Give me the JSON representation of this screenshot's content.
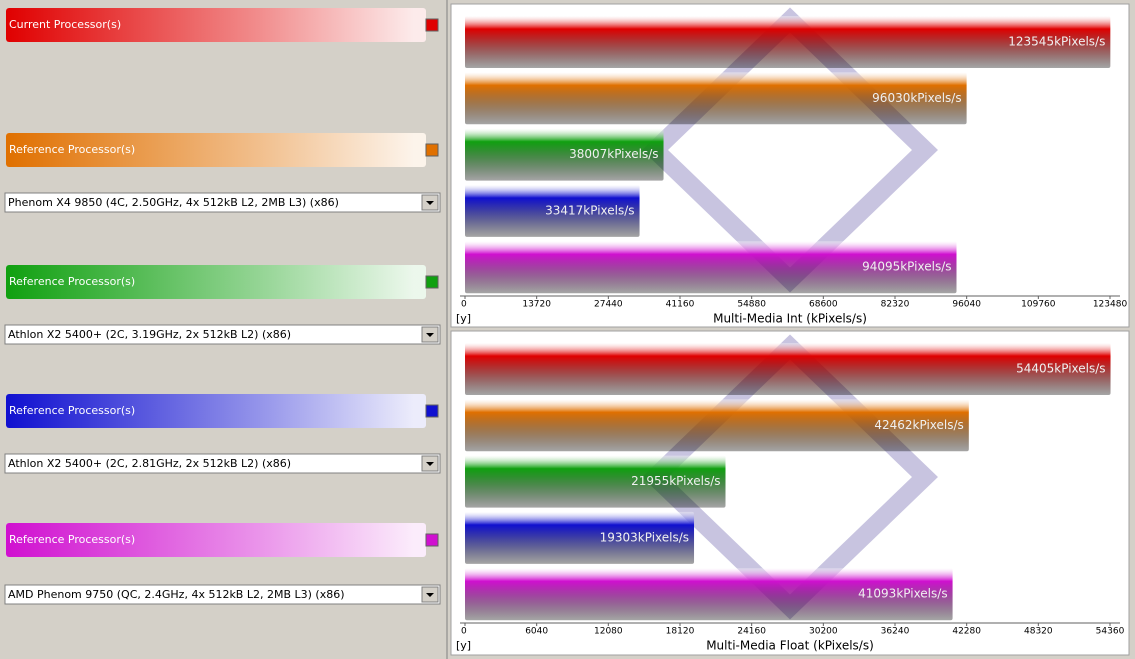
{
  "panel": {
    "processors": [
      {
        "label": "Current Processor(s)",
        "color": "#e00000"
      },
      {
        "label": "Reference Processor(s)",
        "color": "#e07000",
        "selection": "Phenom X4 9850 (4C, 2.50GHz, 4x 512kB L2, 2MB L3) (x86)"
      },
      {
        "label": "Reference Processor(s)",
        "color": "#10a010",
        "selection": "Athlon X2 5400+ (2C, 3.19GHz, 2x 512kB L2) (x86)"
      },
      {
        "label": "Reference Processor(s)",
        "color": "#1010d0",
        "selection": "Athlon X2 5400+ (2C, 2.81GHz, 2x 512kB L2) (x86)"
      },
      {
        "label": "Reference Processor(s)",
        "color": "#d010d0",
        "selection": "AMD Phenom 9750 (QC, 2.4GHz, 4x 512kB L2, 2MB L3) (x86)"
      }
    ]
  },
  "chart_data": [
    {
      "type": "bar",
      "orientation": "horizontal",
      "xlabel": "Multi-Media Int (kPixels/s)",
      "unit_label": "[y]",
      "values": [
        123545,
        96030,
        38007,
        33417,
        94095
      ],
      "value_labels": [
        "123545kPixels/s",
        "96030kPixels/s",
        "38007kPixels/s",
        "33417kPixels/s",
        "94095kPixels/s"
      ],
      "colors": [
        "#e00000",
        "#e07000",
        "#10a010",
        "#1010d0",
        "#d010d0"
      ],
      "xlim": [
        0,
        123480
      ],
      "xticks": [
        0,
        13720,
        27440,
        41160,
        54880,
        68600,
        82320,
        96040,
        109760,
        123480
      ]
    },
    {
      "type": "bar",
      "orientation": "horizontal",
      "xlabel": "Multi-Media Float  (kPixels/s)",
      "unit_label": "[y]",
      "values": [
        54405,
        42462,
        21955,
        19303,
        41093
      ],
      "value_labels": [
        "54405kPixels/s",
        "42462kPixels/s",
        "21955kPixels/s",
        "19303kPixels/s",
        "41093kPixels/s"
      ],
      "colors": [
        "#e00000",
        "#e07000",
        "#10a010",
        "#1010d0",
        "#d010d0"
      ],
      "xlim": [
        0,
        54360
      ],
      "xticks": [
        0,
        6040,
        12080,
        18120,
        24160,
        30200,
        36240,
        42280,
        48320,
        54360
      ]
    }
  ]
}
